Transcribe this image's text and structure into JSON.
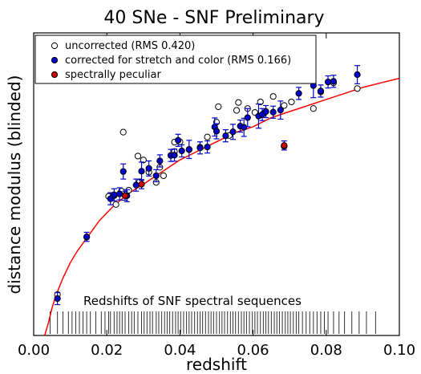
{
  "chart_data": {
    "type": "scatter",
    "title": "40 SNe - SNF Preliminary",
    "xlabel": "redshift",
    "ylabel": "distance modulus (blinded)",
    "xlim": [
      0.0,
      0.1
    ],
    "ylim": [
      0,
      1
    ],
    "xticks": [
      0.0,
      0.02,
      0.04,
      0.06,
      0.08,
      0.1
    ],
    "xtick_labels": [
      "0.00",
      "0.02",
      "0.04",
      "0.06",
      "0.08",
      "0.10"
    ],
    "legend_placement": "top-left",
    "grid": false,
    "series": [
      {
        "name": "uncorrected (RMS 0.420)",
        "marker": "open-circle",
        "color": "#000000",
        "x": [
          0.0065,
          0.0145,
          0.0205,
          0.022,
          0.0225,
          0.024,
          0.0245,
          0.026,
          0.0285,
          0.029,
          0.03,
          0.0315,
          0.0335,
          0.0345,
          0.0355,
          0.0385,
          0.0385,
          0.04,
          0.0425,
          0.0455,
          0.0475,
          0.05,
          0.0505,
          0.0535,
          0.0555,
          0.056,
          0.0585,
          0.0605,
          0.062,
          0.063,
          0.0655,
          0.0685,
          0.0685,
          0.0705,
          0.0765,
          0.0785,
          0.082,
          0.0885
        ],
        "y": [
          0.135,
          0.325,
          0.46,
          0.462,
          0.433,
          0.477,
          0.672,
          0.48,
          0.593,
          0.508,
          0.58,
          0.54,
          0.506,
          0.556,
          0.528,
          0.608,
          0.639,
          0.64,
          0.614,
          0.622,
          0.656,
          0.705,
          0.756,
          0.661,
          0.744,
          0.77,
          0.75,
          0.737,
          0.772,
          0.735,
          0.79,
          0.76,
          0.625,
          0.772,
          0.75,
          0.805,
          0.835,
          0.816
        ],
        "yerr": []
      },
      {
        "name": "corrected for stretch and color (RMS 0.166)",
        "marker": "filled-circle",
        "color": "#0000cc",
        "x": [
          0.0065,
          0.0145,
          0.021,
          0.022,
          0.0235,
          0.0245,
          0.0255,
          0.028,
          0.0295,
          0.0315,
          0.0335,
          0.0345,
          0.0375,
          0.0385,
          0.0395,
          0.0405,
          0.0425,
          0.0455,
          0.0475,
          0.0495,
          0.05,
          0.0525,
          0.0545,
          0.0565,
          0.0575,
          0.0585,
          0.0615,
          0.0625,
          0.0635,
          0.0655,
          0.0675,
          0.0725,
          0.0765,
          0.0785,
          0.0805,
          0.082,
          0.0885
        ],
        "y": [
          0.122,
          0.326,
          0.452,
          0.465,
          0.468,
          0.542,
          0.462,
          0.497,
          0.543,
          0.552,
          0.528,
          0.577,
          0.595,
          0.596,
          0.645,
          0.61,
          0.615,
          0.62,
          0.623,
          0.689,
          0.675,
          0.66,
          0.673,
          0.692,
          0.688,
          0.72,
          0.725,
          0.73,
          0.74,
          0.738,
          0.745,
          0.8,
          0.826,
          0.808,
          0.838,
          0.84,
          0.862
        ],
        "yerr": [
          0.02,
          0.015,
          0.02,
          0.02,
          0.02,
          0.025,
          0.02,
          0.02,
          0.03,
          0.025,
          0.02,
          0.02,
          0.02,
          0.02,
          0.02,
          0.02,
          0.03,
          0.02,
          0.02,
          0.03,
          0.025,
          0.02,
          0.025,
          0.02,
          0.03,
          0.03,
          0.04,
          0.02,
          0.02,
          0.02,
          0.03,
          0.02,
          0.04,
          0.02,
          0.02,
          0.02,
          0.03
        ]
      },
      {
        "name": "spectrally peculiar",
        "marker": "filled-circle",
        "color": "#cc0000",
        "x": [
          0.025,
          0.0295,
          0.0685
        ],
        "y": [
          0.462,
          0.5,
          0.628
        ],
        "yerr": [
          0.015,
          0.015,
          0.015
        ]
      }
    ],
    "fit_curve": {
      "color": "#ff0000",
      "x": [
        0.003,
        0.004,
        0.005,
        0.006,
        0.008,
        0.01,
        0.012,
        0.015,
        0.018,
        0.022,
        0.026,
        0.03,
        0.035,
        0.04,
        0.045,
        0.05,
        0.055,
        0.06,
        0.065,
        0.07,
        0.075,
        0.08,
        0.085,
        0.09,
        0.095,
        0.1
      ],
      "y": [
        -0.02,
        0.04,
        0.09,
        0.13,
        0.19,
        0.24,
        0.28,
        0.33,
        0.38,
        0.43,
        0.47,
        0.5,
        0.54,
        0.58,
        0.61,
        0.64,
        0.67,
        0.69,
        0.72,
        0.74,
        0.76,
        0.78,
        0.8,
        0.82,
        0.835,
        0.85
      ]
    },
    "annotation": "Redshifts of SNF spectral sequences",
    "spectral_sequence_redshifts": [
      0.0045,
      0.0065,
      0.008,
      0.0095,
      0.0105,
      0.0115,
      0.0125,
      0.0135,
      0.0145,
      0.0155,
      0.017,
      0.0185,
      0.0195,
      0.0205,
      0.021,
      0.022,
      0.0228,
      0.0235,
      0.0242,
      0.025,
      0.026,
      0.0268,
      0.0275,
      0.0285,
      0.0295,
      0.0302,
      0.031,
      0.0318,
      0.0325,
      0.0335,
      0.0342,
      0.035,
      0.0358,
      0.0365,
      0.0372,
      0.038,
      0.0388,
      0.0395,
      0.0402,
      0.041,
      0.0418,
      0.0425,
      0.0432,
      0.044,
      0.0448,
      0.0455,
      0.0462,
      0.047,
      0.0478,
      0.0485,
      0.0492,
      0.05,
      0.0508,
      0.0515,
      0.0522,
      0.053,
      0.0538,
      0.0545,
      0.0552,
      0.056,
      0.0568,
      0.0575,
      0.0582,
      0.059,
      0.0598,
      0.0605,
      0.0612,
      0.062,
      0.0628,
      0.0635,
      0.0642,
      0.065,
      0.0658,
      0.0665,
      0.0672,
      0.068,
      0.0688,
      0.0695,
      0.0702,
      0.071,
      0.0718,
      0.0725,
      0.0735,
      0.0745,
      0.0755,
      0.0765,
      0.0775,
      0.0785,
      0.0795,
      0.0805,
      0.082,
      0.0835,
      0.085,
      0.087,
      0.089,
      0.091,
      0.0935
    ]
  }
}
